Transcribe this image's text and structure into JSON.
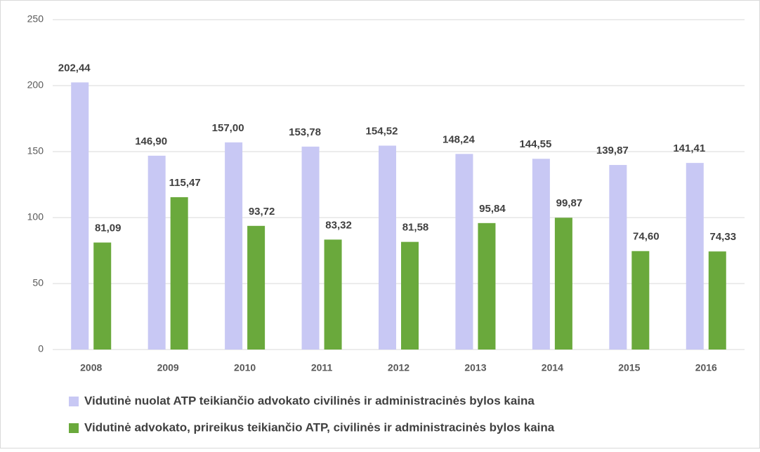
{
  "chart_data": {
    "type": "bar",
    "categories": [
      "2008",
      "2009",
      "2010",
      "2011",
      "2012",
      "2013",
      "2014",
      "2015",
      "2016"
    ],
    "series": [
      {
        "name": "Vidutinė nuolat ATP teikiančio advokato civilinės ir administracinės bylos kaina",
        "color": "#c8c8f4",
        "values": [
          202.44,
          146.9,
          157.0,
          153.78,
          154.52,
          148.24,
          144.55,
          139.87,
          141.41
        ],
        "value_labels": [
          "202,44",
          "146,90",
          "157,00",
          "153,78",
          "154,52",
          "148,24",
          "144,55",
          "139,87",
          "141,41"
        ]
      },
      {
        "name": "Vidutinė advokato, prireikus teikiančio ATP, civilinės ir administracinės bylos kaina",
        "color": "#6aa93c",
        "values": [
          81.09,
          115.47,
          93.72,
          83.32,
          81.58,
          95.84,
          99.87,
          74.6,
          74.33
        ],
        "value_labels": [
          "81,09",
          "115,47",
          "93,72",
          "83,32",
          "81,58",
          "95,84",
          "99,87",
          "74,60",
          "74,33"
        ]
      }
    ],
    "ylim": [
      0,
      250
    ],
    "yticks": [
      0,
      50,
      100,
      150,
      200,
      250
    ],
    "grid": true,
    "legend": "bottom"
  }
}
